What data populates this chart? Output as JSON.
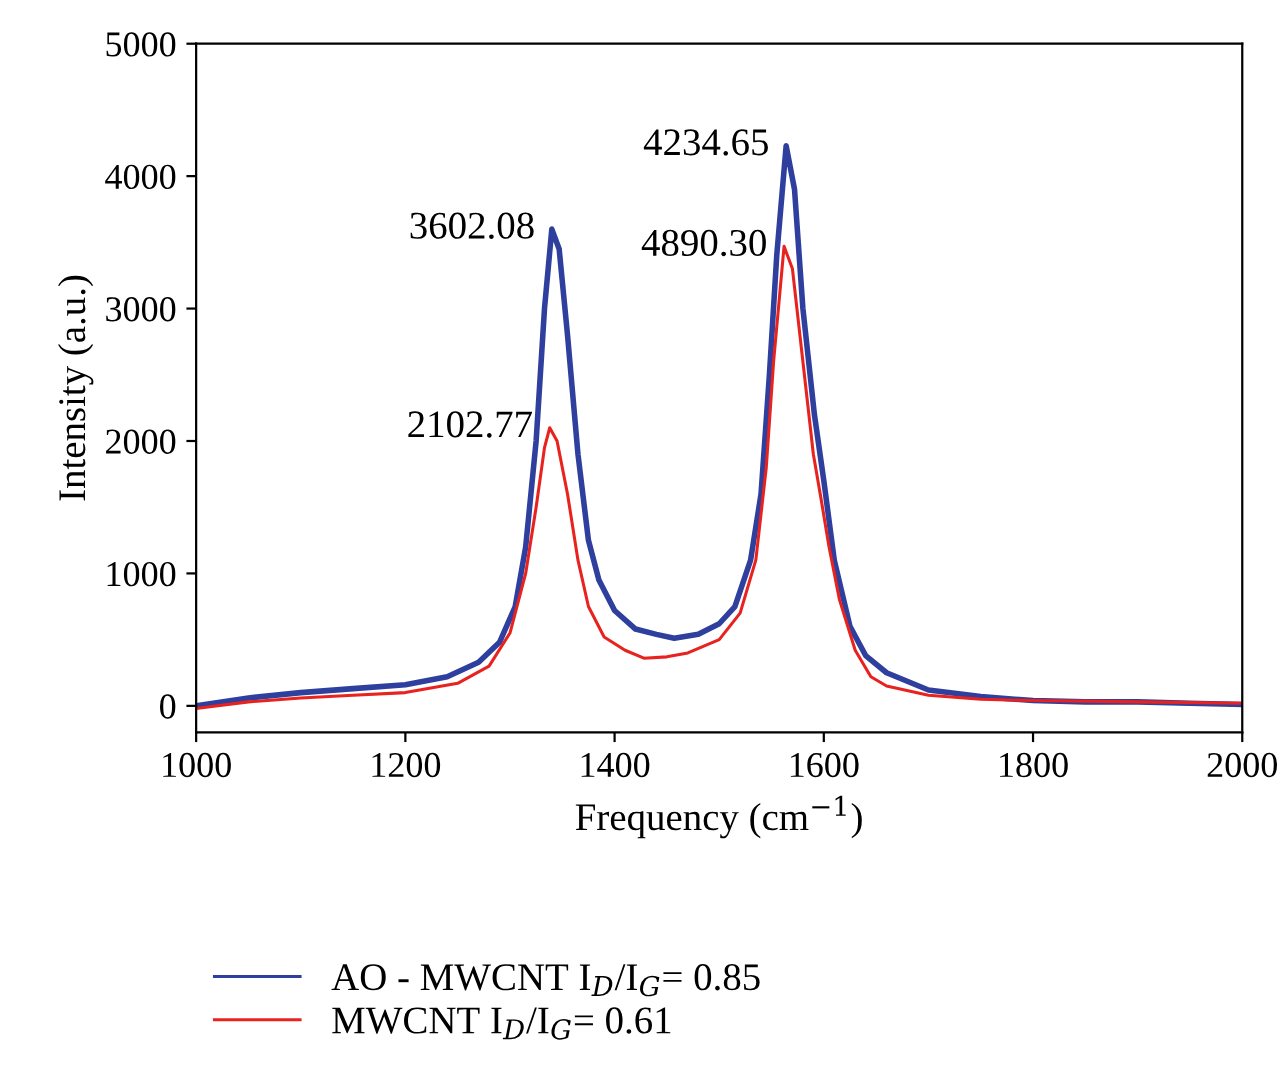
{
  "chart_data": {
    "type": "line",
    "xlabel": "Frequency (cm$^{−1}$)",
    "ylabel": "Intensity (a.u.)",
    "xlim": [
      1000,
      2000
    ],
    "xticks": [
      1000,
      1200,
      1400,
      1600,
      1800,
      2000
    ],
    "ylim": [
      -200,
      5000
    ],
    "yticks": [
      0,
      1000,
      2000,
      3000,
      4000,
      5000
    ],
    "grid": false,
    "legend": "bottom",
    "marker": "none",
    "line_style": "solid",
    "series": [
      {
        "name": "AO - MWCNT I$_{D}$/I$_{G}$= 0.85",
        "color": "#2e3f9e",
        "x": [
          1000,
          1050,
          1100,
          1150,
          1200,
          1240,
          1270,
          1290,
          1305,
          1315,
          1325,
          1333,
          1340,
          1347,
          1355,
          1365,
          1375,
          1385,
          1400,
          1420,
          1440,
          1457,
          1480,
          1500,
          1515,
          1530,
          1540,
          1548,
          1555,
          1564,
          1572,
          1580,
          1591,
          1600,
          1610,
          1625,
          1640,
          1660,
          1700,
          1750,
          1800,
          1850,
          1900,
          1950,
          2000
        ],
        "values": [
          0,
          60,
          100,
          130,
          160,
          220,
          330,
          480,
          750,
          1200,
          2000,
          3000,
          3600,
          3450,
          2800,
          1900,
          1250,
          950,
          720,
          580,
          540,
          510,
          540,
          620,
          750,
          1100,
          1600,
          2500,
          3400,
          4230,
          3900,
          3000,
          2200,
          1700,
          1100,
          600,
          380,
          250,
          120,
          70,
          40,
          30,
          30,
          20,
          10
        ]
      },
      {
        "name": "MWCNT I$_{D}$/I$_{G}$= 0.61",
        "color": "#e8231f",
        "x": [
          1000,
          1050,
          1100,
          1150,
          1200,
          1250,
          1280,
          1300,
          1315,
          1325,
          1333,
          1338,
          1345,
          1355,
          1365,
          1375,
          1390,
          1410,
          1428,
          1450,
          1470,
          1500,
          1520,
          1535,
          1545,
          1552,
          1562,
          1570,
          1580,
          1590,
          1597,
          1605,
          1615,
          1630,
          1645,
          1660,
          1700,
          1750,
          1800,
          1900,
          2000
        ],
        "values": [
          -20,
          30,
          60,
          80,
          100,
          170,
          300,
          550,
          1000,
          1500,
          1950,
          2100,
          2000,
          1600,
          1100,
          750,
          520,
          420,
          360,
          370,
          400,
          500,
          700,
          1100,
          1800,
          2600,
          3470,
          3300,
          2600,
          1900,
          1580,
          1200,
          800,
          420,
          220,
          150,
          80,
          50,
          40,
          30,
          20
        ]
      }
    ],
    "annotations": [
      {
        "text": "3602.08",
        "x": 1340,
        "y": 3600
      },
      {
        "text": "2102.77",
        "x": 1338,
        "y": 2100
      },
      {
        "text": "4234.65",
        "x": 1564,
        "y": 4230
      },
      {
        "text": "4890.30",
        "x": 1562,
        "y": 3470
      }
    ]
  }
}
